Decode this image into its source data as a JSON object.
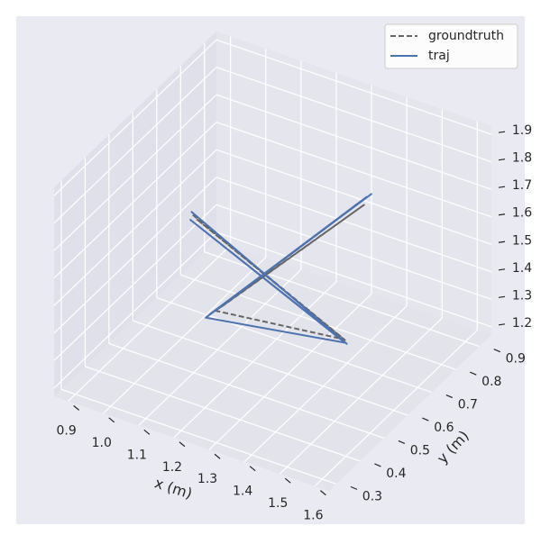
{
  "chart_data": {
    "type": "line3d",
    "xlabel": "x (m)",
    "ylabel": "y (m)",
    "xlim": [
      0.86,
      1.64
    ],
    "ylim": [
      0.27,
      0.95
    ],
    "zlim": [
      1.17,
      1.93
    ],
    "xticks": [
      0.9,
      {
        "value": 1.0,
        "label": "1.0"
      },
      1.1,
      1.2,
      1.3,
      1.4,
      1.5,
      1.6
    ],
    "yticks": [
      0.3,
      0.4,
      0.5,
      0.6,
      0.7,
      0.8,
      0.9
    ],
    "zticks": [
      1.2,
      1.3,
      1.4,
      1.5,
      1.6,
      1.7,
      1.8,
      1.9
    ],
    "grid": true,
    "legend": "upper right",
    "series": [
      {
        "name": "groundtruth",
        "color": "#666666",
        "linestyle": "--",
        "x": [
          1.03,
          1.59,
          1.04,
          1.58,
          1.25,
          1.36,
          1.26,
          1.35
        ],
        "y": [
          0.6,
          0.41,
          0.6,
          0.42,
          0.37,
          0.83,
          0.38,
          0.82
        ],
        "z": [
          1.63,
          1.58,
          1.62,
          1.57,
          1.57,
          1.62,
          1.58,
          1.63
        ]
      },
      {
        "name": "traj",
        "color": "#4c72b0",
        "linestyle": "-",
        "x": [
          1.025,
          1.602,
          1.03,
          1.59,
          1.236,
          1.367,
          1.24,
          1.36,
          1.25
        ],
        "y": [
          0.6,
          0.4,
          0.59,
          0.41,
          0.35,
          0.85,
          0.36,
          0.84,
          0.37
        ],
        "z": [
          1.64,
          1.58,
          1.62,
          1.57,
          1.555,
          1.646,
          1.56,
          1.64,
          1.57
        ]
      }
    ]
  }
}
